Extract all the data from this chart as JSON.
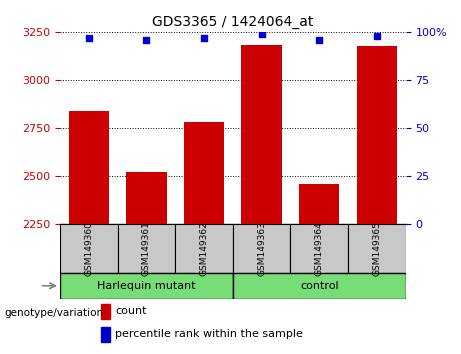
{
  "title": "GDS3365 / 1424064_at",
  "categories": [
    "GSM149360",
    "GSM149361",
    "GSM149362",
    "GSM149363",
    "GSM149364",
    "GSM149365"
  ],
  "bar_values": [
    2840,
    2520,
    2780,
    3180,
    2460,
    3175
  ],
  "percentile_values": [
    97,
    96,
    97,
    99,
    96,
    98
  ],
  "ylim_left": [
    2250,
    3250
  ],
  "yticks_left": [
    2250,
    2500,
    2750,
    3000,
    3250
  ],
  "ylim_right": [
    0,
    100
  ],
  "yticks_right": [
    0,
    25,
    50,
    75,
    100
  ],
  "ytick_right_labels": [
    "0",
    "25",
    "50",
    "75",
    "100%"
  ],
  "bar_color": "#CC0000",
  "dot_color": "#0000CC",
  "bar_width": 0.7,
  "groups": [
    {
      "label": "Harlequin mutant",
      "start": 0,
      "end": 2
    },
    {
      "label": "control",
      "start": 3,
      "end": 5
    }
  ],
  "group_label": "genotype/variation",
  "legend_count_color": "#CC0000",
  "legend_dot_color": "#0000CC",
  "legend_count_text": "count",
  "legend_dot_text": "percentile rank within the sample",
  "tick_color_left": "#CC0000",
  "tick_color_right": "#0000CC",
  "grid_color": "black",
  "bg_color": "#C8C8C8",
  "group_box_color": "#77DD77",
  "right_yaxis_color": "#0000CC"
}
